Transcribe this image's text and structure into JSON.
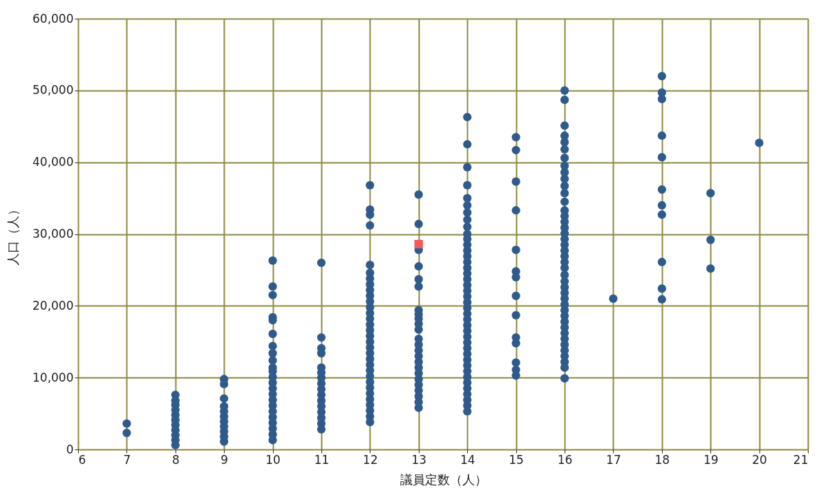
{
  "chart_data": {
    "type": "scatter",
    "xlabel": "議員定数（人）",
    "ylabel": "人口（人）",
    "xlim": [
      6,
      21
    ],
    "xticks": [
      6,
      7,
      8,
      9,
      10,
      11,
      12,
      13,
      14,
      15,
      16,
      17,
      18,
      19,
      20,
      21
    ],
    "ylim": [
      0,
      60000
    ],
    "yticks": [
      0,
      {
        "value": 10000,
        "label": "10,000"
      },
      {
        "value": 20000,
        "label": "20,000"
      },
      {
        "value": 30000,
        "label": "30,000"
      },
      {
        "value": 40000,
        "label": "40,000"
      },
      {
        "value": 50000,
        "label": "50,000"
      },
      {
        "value": 60000,
        "label": "60,000"
      }
    ],
    "grid": true,
    "marker": "circle",
    "series": [
      {
        "color": "#2f5b8c",
        "x": [
          7,
          7,
          8,
          8,
          8,
          8,
          8,
          8,
          8,
          8,
          8,
          8,
          8,
          9,
          9,
          9,
          9,
          9,
          9,
          9,
          9,
          9,
          9,
          9,
          10,
          10,
          10,
          10,
          10,
          10,
          10,
          10,
          10,
          10,
          10,
          10,
          10,
          10,
          10,
          10,
          10,
          10,
          10,
          10,
          10,
          10,
          10,
          11,
          11,
          11,
          11,
          11,
          11,
          11,
          11,
          11,
          11,
          11,
          11,
          11,
          11,
          11,
          11,
          12,
          12,
          12,
          12,
          12,
          12,
          12,
          12,
          12,
          12,
          12,
          12,
          12,
          12,
          12,
          12,
          12,
          12,
          12,
          12,
          12,
          12,
          12,
          12,
          12,
          12,
          12,
          12,
          12,
          12,
          12,
          12,
          13,
          13,
          13,
          13,
          13,
          13,
          13,
          13,
          13,
          13,
          13,
          13,
          13,
          13,
          13,
          13,
          13,
          13,
          13,
          13,
          13,
          13,
          13,
          13,
          14,
          14,
          14,
          14,
          14,
          14,
          14,
          14,
          14,
          14,
          14,
          14,
          14,
          14,
          14,
          14,
          14,
          14,
          14,
          14,
          14,
          14,
          14,
          14,
          14,
          14,
          14,
          14,
          14,
          14,
          14,
          14,
          14,
          14,
          14,
          14,
          14,
          14,
          14,
          14,
          14,
          15,
          15,
          15,
          15,
          15,
          15,
          15,
          15,
          15,
          15,
          15,
          15,
          15,
          15,
          16,
          16,
          16,
          16,
          16,
          16,
          16,
          16,
          16,
          16,
          16,
          16,
          16,
          16,
          16,
          16,
          16,
          16,
          16,
          16,
          16,
          16,
          16,
          16,
          16,
          16,
          16,
          16,
          16,
          16,
          16,
          16,
          16,
          16,
          16,
          16,
          16,
          16,
          16,
          16,
          16,
          16,
          17,
          18,
          18,
          18,
          18,
          18,
          18,
          18,
          18,
          18,
          18,
          18,
          19,
          19,
          19,
          20
        ],
        "values": [
          2300,
          3600,
          600,
          1300,
          2000,
          2700,
          3400,
          4100,
          4800,
          5500,
          6200,
          6800,
          7600,
          1100,
          1800,
          2500,
          3200,
          3900,
          4600,
          5300,
          6000,
          7100,
          9100,
          9800,
          1300,
          2100,
          2900,
          3700,
          4500,
          5300,
          6100,
          6900,
          7700,
          8500,
          9300,
          10100,
          10900,
          11400,
          12400,
          13400,
          14400,
          16100,
          18000,
          18400,
          21500,
          22700,
          26300,
          2800,
          3600,
          4400,
          5200,
          6000,
          6800,
          7600,
          8400,
          9200,
          10000,
          10700,
          11400,
          13400,
          14100,
          15600,
          26000,
          3800,
          4600,
          5400,
          6200,
          7000,
          7800,
          8600,
          9400,
          10200,
          11000,
          11800,
          12600,
          13400,
          14200,
          15000,
          15800,
          16600,
          17400,
          18200,
          19000,
          19800,
          20600,
          21400,
          22200,
          23000,
          23800,
          24600,
          25700,
          31200,
          32700,
          33400,
          36800,
          5800,
          6600,
          7400,
          8200,
          9000,
          9800,
          10600,
          11400,
          12200,
          13000,
          13800,
          14600,
          15400,
          16700,
          17500,
          18200,
          18800,
          19400,
          22700,
          23700,
          25500,
          27800,
          31400,
          35500,
          5300,
          6100,
          6900,
          7700,
          8500,
          9300,
          10100,
          10900,
          11700,
          12500,
          13300,
          14100,
          14900,
          15700,
          16500,
          17300,
          18100,
          18900,
          19700,
          20500,
          21300,
          22100,
          22900,
          23700,
          24500,
          25300,
          26100,
          26900,
          27700,
          28500,
          29300,
          30000,
          31000,
          32000,
          33000,
          34000,
          35000,
          36800,
          39300,
          42500,
          46300,
          10300,
          11100,
          12100,
          14800,
          15600,
          18700,
          21400,
          24000,
          24800,
          27800,
          33300,
          37300,
          41700,
          43500,
          9900,
          11400,
          12200,
          13000,
          13800,
          14600,
          15400,
          16200,
          17000,
          17800,
          18600,
          19400,
          20200,
          21000,
          21800,
          22600,
          23400,
          24300,
          25300,
          26100,
          26900,
          27700,
          28500,
          29300,
          30100,
          30900,
          31700,
          32500,
          33300,
          34500,
          35700,
          36700,
          37700,
          38600,
          39500,
          40600,
          41800,
          42800,
          43700,
          45100,
          48700,
          50000,
          21000,
          20900,
          22400,
          26100,
          32700,
          34000,
          36200,
          40700,
          43700,
          48800,
          49700,
          52000,
          25200,
          29200,
          35700,
          42700
        ]
      },
      {
        "color": "#f05a5a",
        "marker": "square",
        "x": [
          13
        ],
        "values": [
          28600
        ]
      }
    ]
  }
}
